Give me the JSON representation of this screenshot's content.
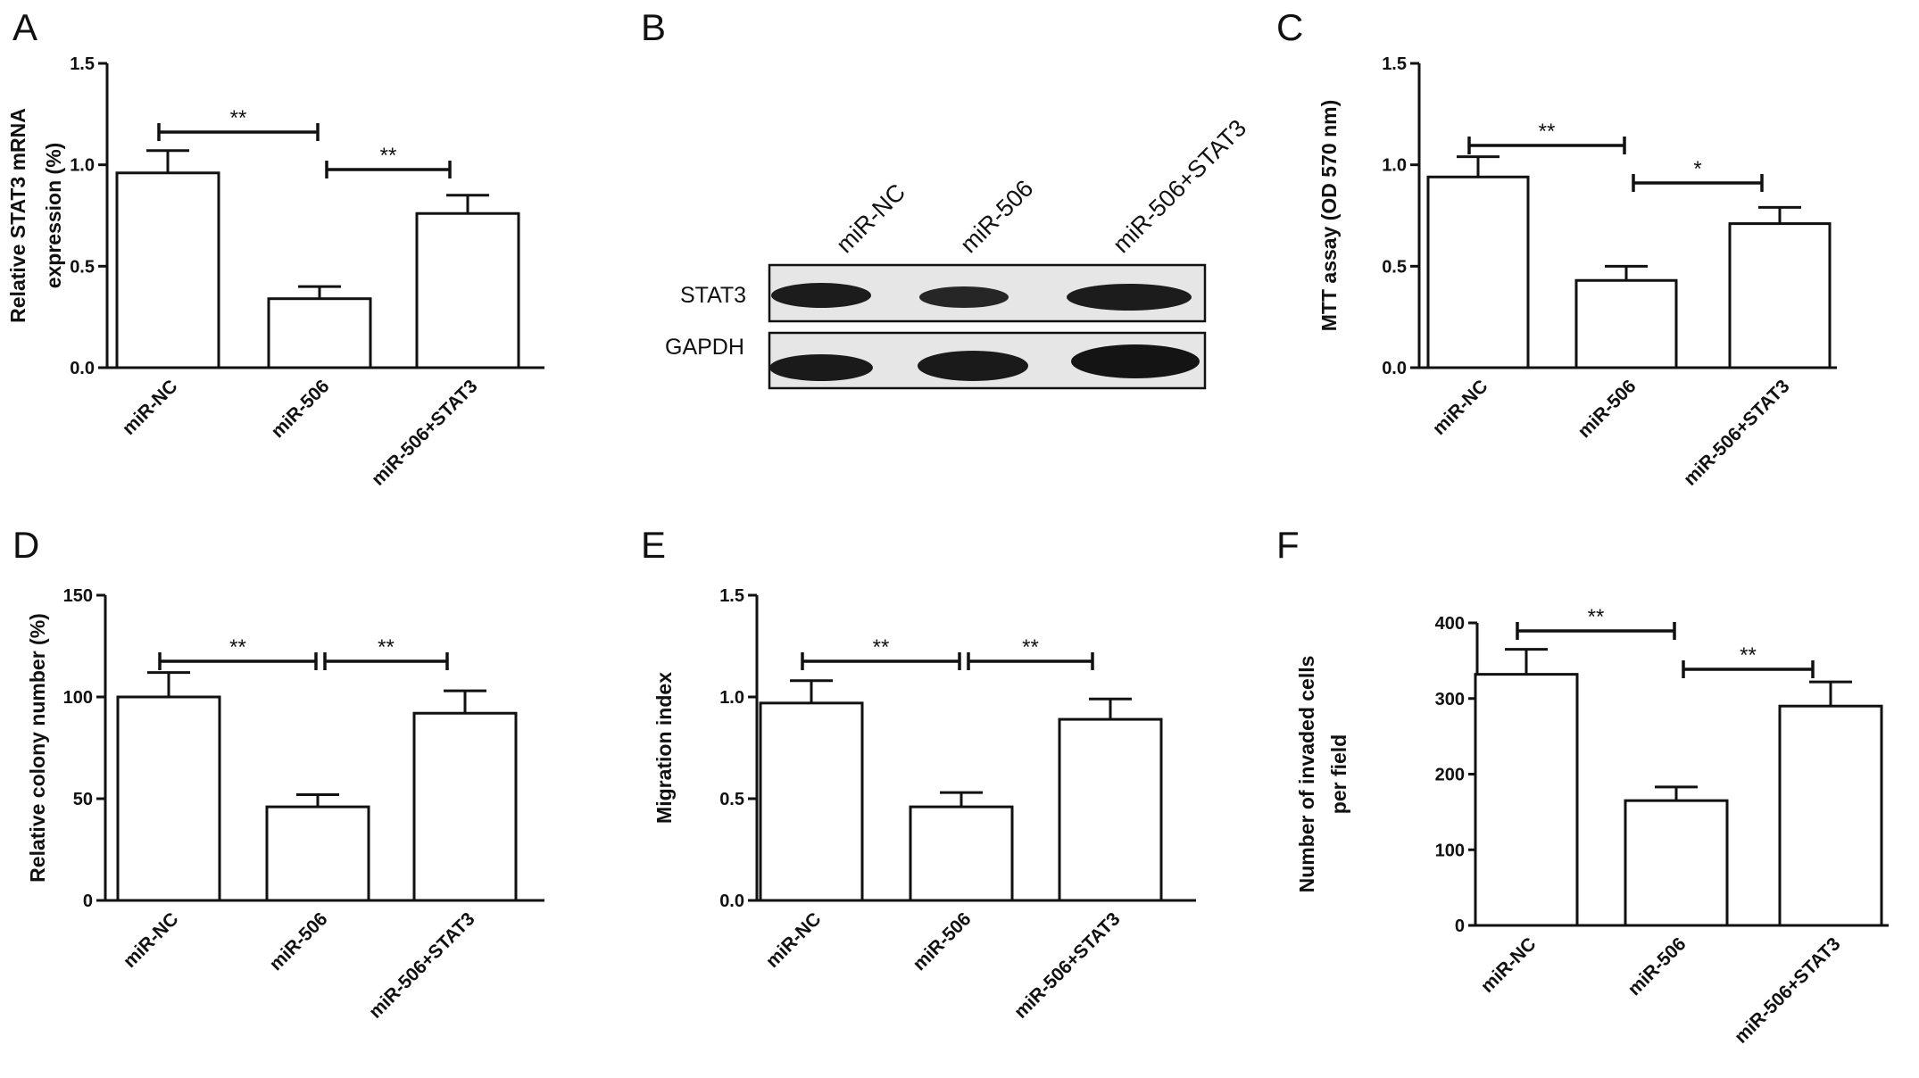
{
  "chart_data": [
    {
      "panel": "A",
      "type": "bar",
      "categories": [
        "miR-NC",
        "miR-506",
        "miR-506+STAT3"
      ],
      "values": [
        0.96,
        0.34,
        0.76
      ],
      "errors": [
        0.11,
        0.06,
        0.09
      ],
      "ylabel": [
        "Relative STAT3 mRNA",
        "expression (%)"
      ],
      "ylim": [
        0,
        1.5
      ],
      "yticks": [
        "0.0",
        "0.5",
        "1.0",
        "1.5"
      ],
      "significance": [
        {
          "from": 0,
          "to": 1,
          "label": "**"
        },
        {
          "from": 1,
          "to": 2,
          "label": "**"
        }
      ]
    },
    {
      "panel": "C",
      "type": "bar",
      "categories": [
        "miR-NC",
        "miR-506",
        "miR-506+STAT3"
      ],
      "values": [
        0.94,
        0.43,
        0.71
      ],
      "errors": [
        0.1,
        0.07,
        0.08
      ],
      "ylabel": [
        "MTT assay (OD 570 nm)"
      ],
      "ylim": [
        0,
        1.5
      ],
      "yticks": [
        "0.0",
        "0.5",
        "1.0",
        "1.5"
      ],
      "significance": [
        {
          "from": 0,
          "to": 1,
          "label": "**"
        },
        {
          "from": 1,
          "to": 2,
          "label": "*"
        }
      ]
    },
    {
      "panel": "D",
      "type": "bar",
      "categories": [
        "miR-NC",
        "miR-506",
        "miR-506+STAT3"
      ],
      "values": [
        100,
        46,
        92
      ],
      "errors": [
        12,
        6,
        11
      ],
      "ylabel": [
        "Relative colony number (%)"
      ],
      "ylim": [
        0,
        150
      ],
      "yticks": [
        "0",
        "50",
        "100",
        "150"
      ],
      "significance": [
        {
          "from": 0,
          "to": 1,
          "label": "**"
        },
        {
          "from": 1,
          "to": 2,
          "label": "**"
        }
      ]
    },
    {
      "panel": "E",
      "type": "bar",
      "categories": [
        "miR-NC",
        "miR-506",
        "miR-506+STAT3"
      ],
      "values": [
        0.97,
        0.46,
        0.89
      ],
      "errors": [
        0.11,
        0.07,
        0.1
      ],
      "ylabel": [
        "Migration index"
      ],
      "ylim": [
        0,
        1.5
      ],
      "yticks": [
        "0.0",
        "0.5",
        "1.0",
        "1.5"
      ],
      "significance": [
        {
          "from": 0,
          "to": 1,
          "label": "**"
        },
        {
          "from": 1,
          "to": 2,
          "label": "**"
        }
      ]
    },
    {
      "panel": "F",
      "type": "bar",
      "categories": [
        "miR-NC",
        "miR-506",
        "miR-506+STAT3"
      ],
      "values": [
        332,
        165,
        290
      ],
      "errors": [
        33,
        18,
        32
      ],
      "ylabel": [
        "Number of invaded cells",
        "per field"
      ],
      "ylim": [
        0,
        400
      ],
      "yticks": [
        "0",
        "100",
        "200",
        "300",
        "400"
      ],
      "significance": [
        {
          "from": 0,
          "to": 1,
          "label": "**"
        },
        {
          "from": 1,
          "to": 2,
          "label": "**"
        }
      ]
    }
  ],
  "blot": {
    "panel": "B",
    "lanes": [
      "miR-NC",
      "miR-506",
      "miR-506+STAT3"
    ],
    "rows": [
      "STAT3",
      "GAPDH"
    ]
  },
  "colors": {
    "bar_fill": "#ffffff",
    "stroke": "#111111",
    "blot_bg": "#e6e6e6",
    "band": "#1c1c1c"
  }
}
